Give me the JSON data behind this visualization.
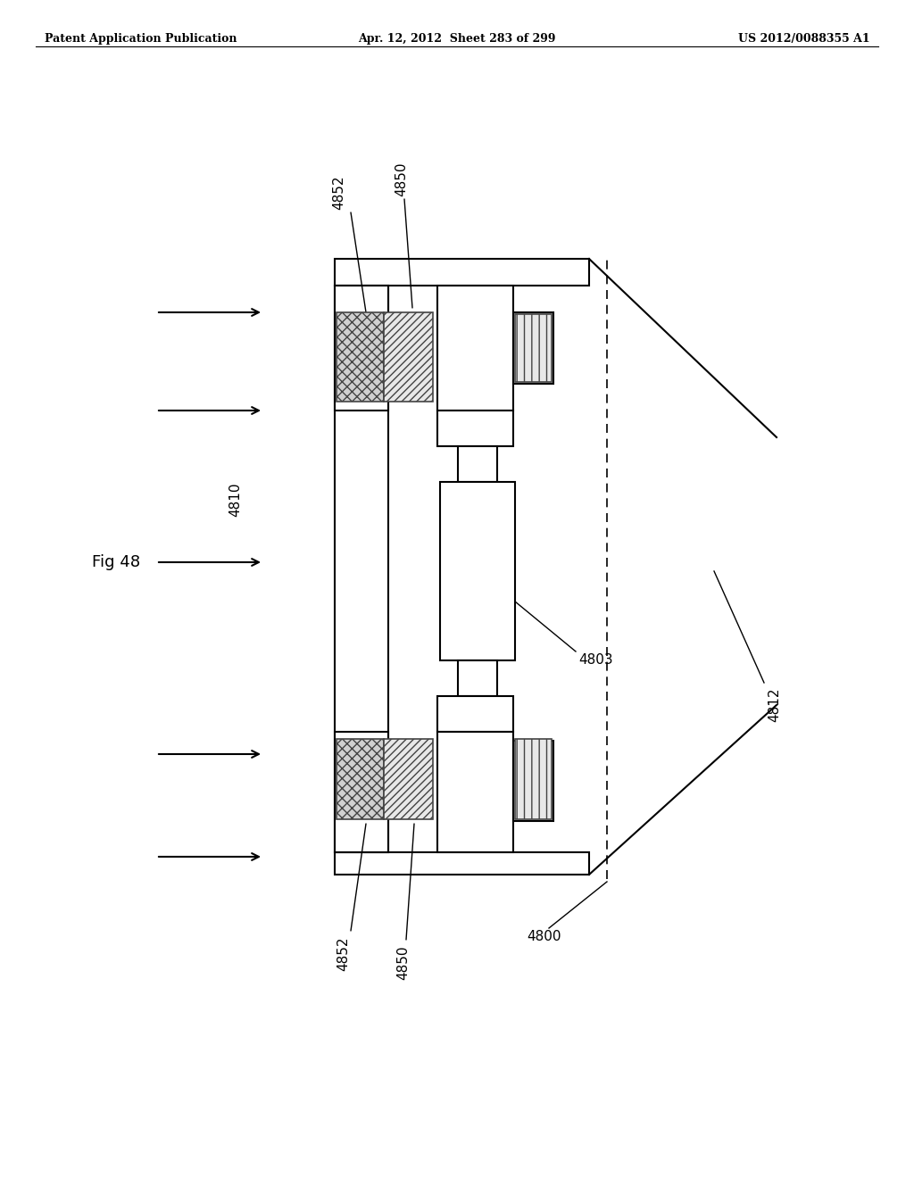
{
  "header_left": "Patent Application Publication",
  "header_center": "Apr. 12, 2012  Sheet 283 of 299",
  "header_right": "US 2012/0088355 A1",
  "fig_label": "Fig 48",
  "bg_color": "#ffffff",
  "line_color": "#000000",
  "label_4810": "4810",
  "label_4800": "4800",
  "label_4803": "4803",
  "label_4812": "4812",
  "label_4850_top": "4850",
  "label_4852_top": "4852",
  "label_4850_bot": "4850",
  "label_4852_bot": "4852"
}
